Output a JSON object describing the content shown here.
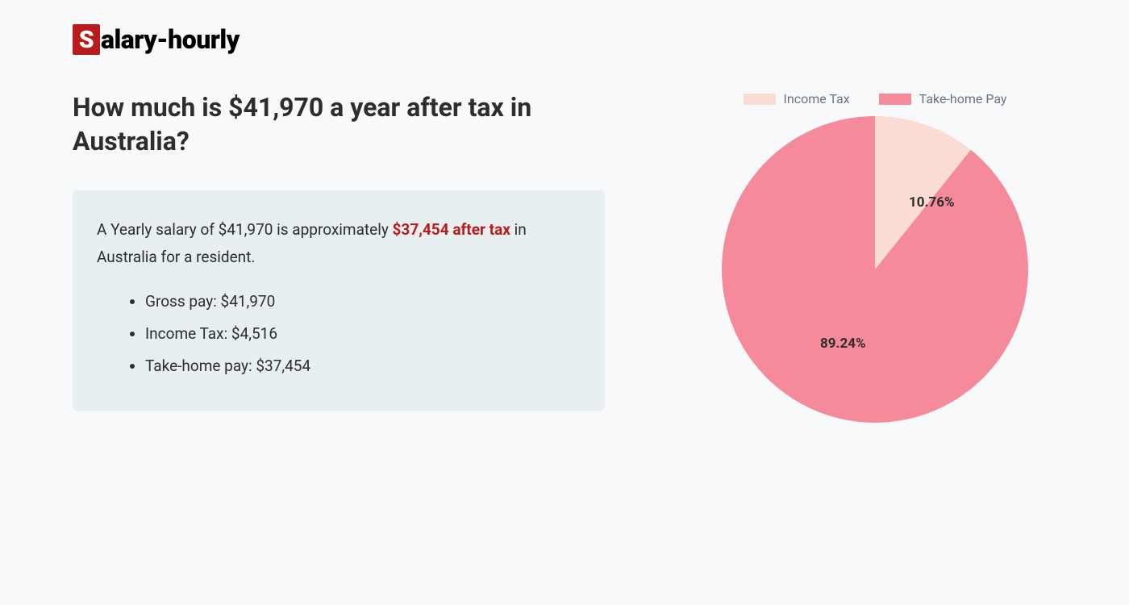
{
  "logo": {
    "s": "S",
    "rest": "alary-hourly"
  },
  "heading": "How much is $41,970 a year after tax in Australia?",
  "summary": {
    "pre": "A Yearly salary of $41,970 is approximately ",
    "highlight": "$37,454 after tax",
    "post": " in Australia for a resident."
  },
  "items": [
    "Gross pay: $41,970",
    "Income Tax: $4,516",
    "Take-home pay: $37,454"
  ],
  "chart": {
    "type": "pie",
    "legend": [
      {
        "label": "Income Tax",
        "color": "#fadcd4"
      },
      {
        "label": "Take-home Pay",
        "color": "#f58a9b"
      }
    ],
    "slices": [
      {
        "label": "10.76%",
        "value": 10.76,
        "color": "#fadcd4"
      },
      {
        "label": "89.24%",
        "value": 89.24,
        "color": "#f58a9b"
      }
    ],
    "background_color": "#f7f9fa",
    "heading_color": "#2d2d2d",
    "highlight_color": "#b91c1c",
    "infobox_bg": "#e8eff0",
    "legend_text_color": "#6b7280",
    "label_fontsize": 17,
    "heading_fontsize": 32,
    "body_fontsize": 19
  }
}
